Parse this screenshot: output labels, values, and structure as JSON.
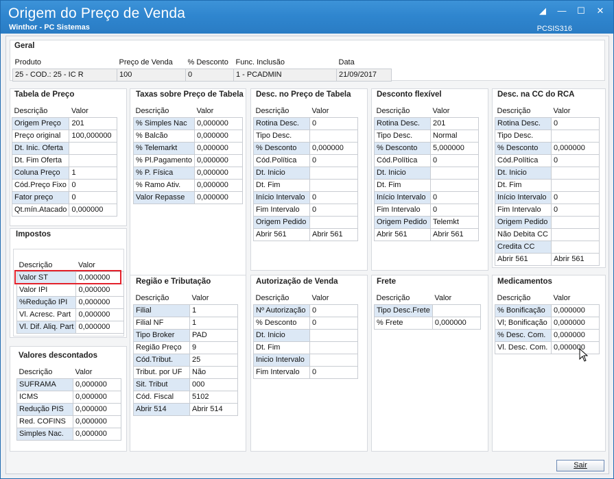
{
  "window": {
    "title": "Origem do Preço de Venda",
    "subtitle": "Winthor - PC Sistemas",
    "code": "PCSIS316"
  },
  "geral": {
    "title": "Geral",
    "headers": [
      "Produto",
      "Preço de Venda",
      "% Desconto",
      "Func. Inclusão",
      "Data"
    ],
    "values": [
      "25 - COD.: 25 - IC R",
      "100",
      "0",
      "1 - PCADMIN",
      "21/09/2017"
    ]
  },
  "columns": {
    "desc": "Descrição",
    "valor": "Valor"
  },
  "tabela_preco": {
    "title": "Tabela de Preço",
    "rows": [
      [
        "Origem Preço",
        "201"
      ],
      [
        "Preço original",
        "100,000000"
      ],
      [
        "Dt. Inic. Oferta",
        ""
      ],
      [
        "Dt. Fim Oferta",
        ""
      ],
      [
        "Coluna Preço",
        "1"
      ],
      [
        "Cód.Preço Fixo",
        "0"
      ],
      [
        "Fator preço",
        "0"
      ],
      [
        "Qt.mín.Atacado",
        "0,000000"
      ]
    ]
  },
  "taxas": {
    "title": "Taxas sobre Preço de Tabela",
    "rows": [
      [
        "% Simples Nac",
        "0,000000"
      ],
      [
        "% Balcão",
        "0,000000"
      ],
      [
        "% Telemarkt",
        "0,000000"
      ],
      [
        "% Pl.Pagamento",
        "0,000000"
      ],
      [
        "% P. Física",
        "0,000000"
      ],
      [
        "% Ramo Ativ.",
        "0,000000"
      ],
      [
        "Valor Repasse",
        "0,000000"
      ]
    ]
  },
  "desc_tabela": {
    "title": "Desc. no Preço de Tabela",
    "rows": [
      [
        "Rotina Desc.",
        "0"
      ],
      [
        "Tipo Desc.",
        ""
      ],
      [
        "% Desconto",
        "0,000000"
      ],
      [
        "Cód.Política",
        "0"
      ],
      [
        "Dt. Inicio",
        ""
      ],
      [
        "Dt. Fim",
        ""
      ],
      [
        "Início Intervalo",
        "0"
      ],
      [
        "Fim Intervalo",
        "0"
      ],
      [
        "Origem Pedido",
        ""
      ],
      [
        "Abrir 561",
        "Abrir 561"
      ]
    ]
  },
  "desc_flexivel": {
    "title": "Desconto flexível",
    "rows": [
      [
        "Rotina Desc.",
        "201"
      ],
      [
        "Tipo Desc.",
        "Normal"
      ],
      [
        "% Desconto",
        "5,000000"
      ],
      [
        "Cód.Política",
        "0"
      ],
      [
        "Dt. Inicio",
        ""
      ],
      [
        "Dt. Fim",
        ""
      ],
      [
        "Início Intervalo",
        "0"
      ],
      [
        "Fim Intervalo",
        "0"
      ],
      [
        "Origem  Pedido",
        "Telemkt"
      ],
      [
        "Abrir 561",
        "Abrir 561"
      ]
    ]
  },
  "desc_cc": {
    "title": "Desc. na CC do RCA",
    "rows": [
      [
        "Rotina Desc.",
        "0"
      ],
      [
        "Tipo Desc.",
        ""
      ],
      [
        "% Desconto",
        "0,000000"
      ],
      [
        "Cód.Política",
        "0"
      ],
      [
        "Dt. Inicio",
        ""
      ],
      [
        "Dt. Fim",
        ""
      ],
      [
        "Início Intervalo",
        "0"
      ],
      [
        "Fim Intervalo",
        "0"
      ],
      [
        "Origem  Pedido",
        ""
      ],
      [
        "Não Debita CC",
        ""
      ],
      [
        "Credita CC",
        ""
      ],
      [
        "Abrir 561",
        "Abrir 561"
      ]
    ]
  },
  "impostos": {
    "title": "Impostos",
    "rows": [
      [
        "Valor ST",
        "0,000000"
      ],
      [
        "Valor IPI",
        "0,000000"
      ],
      [
        "%Redução IPI",
        "0,000000"
      ],
      [
        "Vl. Acresc. Part",
        "0,000000"
      ],
      [
        "Vl. Dif. Aliq. Part",
        "0,000000"
      ]
    ]
  },
  "valores_desc": {
    "title": "Valores descontados",
    "rows": [
      [
        "SUFRAMA",
        "0,000000"
      ],
      [
        "ICMS",
        "0,000000"
      ],
      [
        "Redução PIS",
        "0,000000"
      ],
      [
        "Red. COFINS",
        "0,000000"
      ],
      [
        "Simples Nac.",
        "0,000000"
      ]
    ]
  },
  "regiao": {
    "title": "Região e Tributação",
    "rows": [
      [
        "Filial",
        "1"
      ],
      [
        "Filial NF",
        "1"
      ],
      [
        "Tipo Broker",
        "PAD"
      ],
      [
        "Região Preço",
        "9"
      ],
      [
        "Cód.Tribut.",
        "25"
      ],
      [
        "Tribut. por UF",
        "Não"
      ],
      [
        "Sit. Tribut",
        "000"
      ],
      [
        "Cód. Fiscal",
        "5102"
      ],
      [
        "Abrir 514",
        "Abrir 514"
      ]
    ]
  },
  "autorizacao": {
    "title": "Autorização de Venda",
    "rows": [
      [
        "Nº Autorização",
        "0"
      ],
      [
        "% Desconto",
        "0"
      ],
      [
        "Dt. Inicio",
        ""
      ],
      [
        "Dt. Fim",
        ""
      ],
      [
        "Inicio Intervalo",
        ""
      ],
      [
        "Fim Intervalo",
        "0"
      ]
    ]
  },
  "frete": {
    "title": "Frete",
    "rows": [
      [
        "Tipo Desc.Frete",
        ""
      ],
      [
        "% Frete",
        "0,000000"
      ]
    ]
  },
  "medicamentos": {
    "title": "Medicamentos",
    "rows": [
      [
        "% Bonificação",
        "0,000000"
      ],
      [
        "Vl; Bonificação",
        "0,000000"
      ],
      [
        "% Desc. Com.",
        "0,000000"
      ],
      [
        "Vl. Desc. Com.",
        "0,000000"
      ]
    ]
  },
  "buttons": {
    "sair": "Sair"
  },
  "colors": {
    "titlebar": "#2f86cf",
    "row_alt": "#dce8f5",
    "highlight": "#e3202a"
  }
}
